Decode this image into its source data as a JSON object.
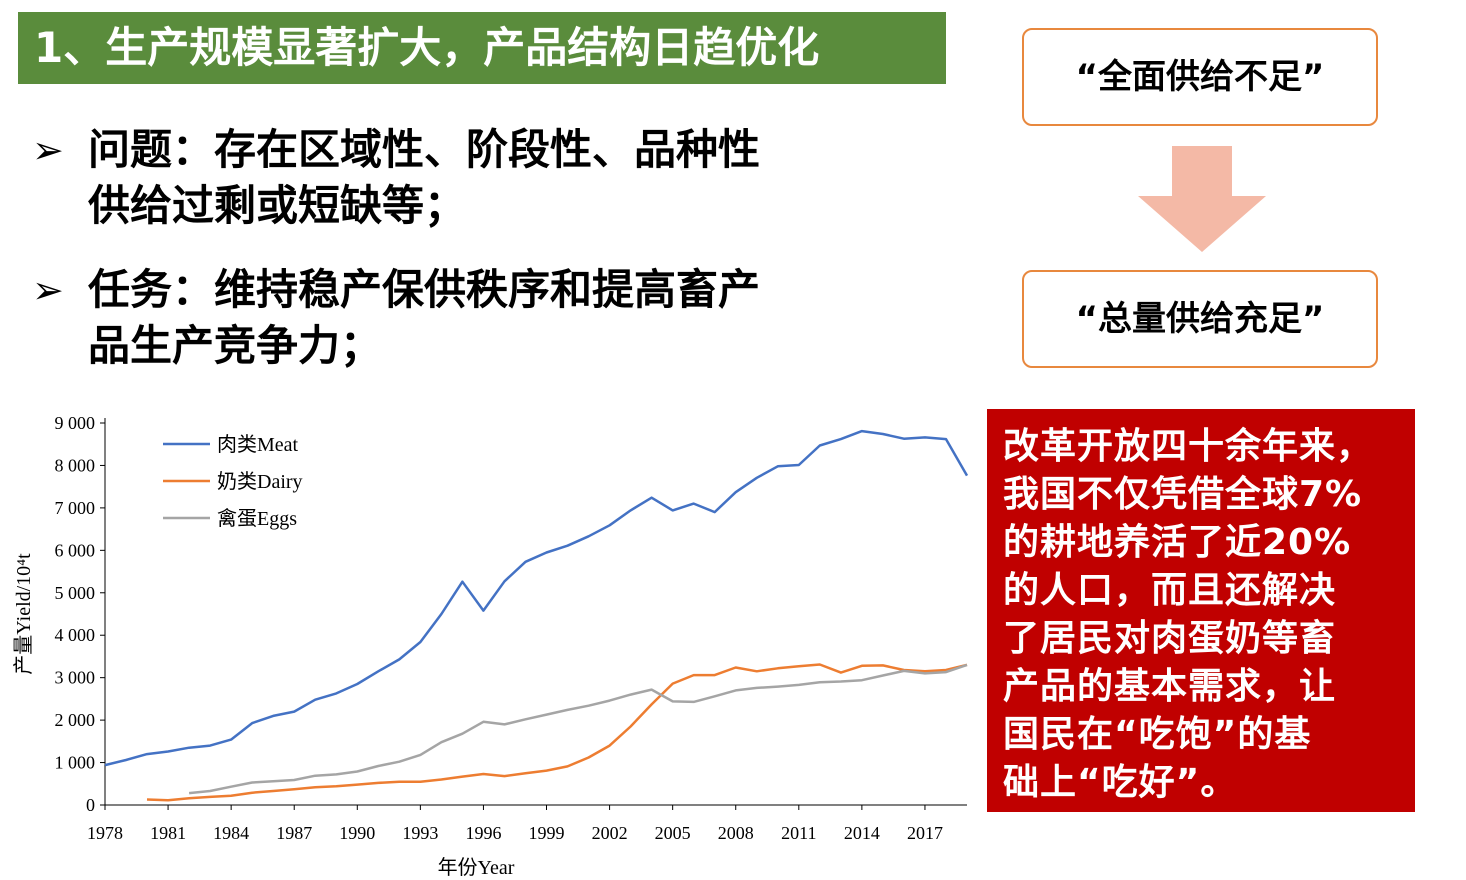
{
  "title": "1、生产规模显著扩大，产品结构日趋优化",
  "bullets": [
    {
      "marker": "➢",
      "lines": [
        "问题：存在区域性、阶段性、品种性",
        "供给过剩或短缺等；"
      ]
    },
    {
      "marker": "➢",
      "lines": [
        "任务：维持稳产保供秩序和提高畜产",
        "品生产竞争力；"
      ]
    }
  ],
  "flow": {
    "from": "“全面供给不足”",
    "to": "“总量供给充足”",
    "arrow_color": "#f4b9a6",
    "box_border_color": "#e8883e"
  },
  "callout": {
    "lines": [
      "改革开放四十余年来，",
      "我国不仅凭借全球7%",
      "的耕地养活了近20%",
      "的人口，而且还解决",
      "了居民对肉蛋奶等畜",
      "产品的基本需求，让",
      "国民在“吃饱”的基",
      "础上“吃好”。"
    ],
    "background": "#c00000"
  },
  "chart_data": {
    "type": "line",
    "xlabel": "年份Year",
    "ylabel": "产量Yield/10⁴t",
    "ylim": [
      0,
      9000
    ],
    "xlim": [
      1978,
      2019
    ],
    "yticks": [
      "0",
      "1 000",
      "2 000",
      "3 000",
      "4 000",
      "5 000",
      "6 000",
      "7 000",
      "8 000",
      "9 000"
    ],
    "xticks": [
      "1978",
      "1981",
      "1984",
      "1987",
      "1990",
      "1993",
      "1996",
      "1999",
      "2002",
      "2005",
      "2008",
      "2011",
      "2014",
      "2017"
    ],
    "legend_position": "top-left",
    "series": [
      {
        "name": "肉类Meat",
        "color": "#4472c4",
        "x": [
          1978,
          1979,
          1980,
          1981,
          1982,
          1983,
          1984,
          1985,
          1986,
          1987,
          1988,
          1989,
          1990,
          1991,
          1992,
          1993,
          1994,
          1995,
          1996,
          1997,
          1998,
          1999,
          2000,
          2001,
          2002,
          2003,
          2004,
          2005,
          2006,
          2007,
          2008,
          2009,
          2010,
          2011,
          2012,
          2013,
          2014,
          2015,
          2016,
          2017,
          2018,
          2019
        ],
        "values": [
          940,
          1060,
          1200,
          1260,
          1350,
          1400,
          1540,
          1930,
          2100,
          2200,
          2480,
          2630,
          2850,
          3150,
          3430,
          3840,
          4500,
          5260,
          4580,
          5270,
          5730,
          5950,
          6110,
          6330,
          6590,
          6940,
          7240,
          6940,
          7100,
          6900,
          7370,
          7710,
          7980,
          8010,
          8470,
          8620,
          8810,
          8740,
          8630,
          8660,
          8620,
          7760
        ]
      },
      {
        "name": "奶类Dairy",
        "color": "#ed7d31",
        "x": [
          1980,
          1981,
          1982,
          1983,
          1984,
          1985,
          1986,
          1987,
          1988,
          1989,
          1990,
          1991,
          1992,
          1993,
          1994,
          1995,
          1996,
          1997,
          1998,
          1999,
          2000,
          2001,
          2002,
          2003,
          2004,
          2005,
          2006,
          2007,
          2008,
          2009,
          2010,
          2011,
          2012,
          2013,
          2014,
          2015,
          2016,
          2017,
          2018,
          2019
        ],
        "values": [
          130,
          110,
          160,
          190,
          220,
          290,
          330,
          370,
          420,
          440,
          480,
          520,
          550,
          550,
          600,
          670,
          730,
          680,
          750,
          810,
          910,
          1120,
          1400,
          1850,
          2370,
          2860,
          3060,
          3060,
          3240,
          3150,
          3220,
          3270,
          3310,
          3120,
          3280,
          3290,
          3180,
          3150,
          3180,
          3300
        ]
      },
      {
        "name": "禽蛋Eggs",
        "color": "#a5a5a5",
        "x": [
          1982,
          1983,
          1984,
          1985,
          1986,
          1987,
          1988,
          1989,
          1990,
          1991,
          1992,
          1993,
          1994,
          1995,
          1996,
          1997,
          1998,
          1999,
          2000,
          2001,
          2002,
          2003,
          2004,
          2005,
          2006,
          2007,
          2008,
          2009,
          2010,
          2011,
          2012,
          2013,
          2014,
          2015,
          2016,
          2017,
          2018,
          2019
        ],
        "values": [
          280,
          330,
          430,
          530,
          560,
          590,
          690,
          720,
          790,
          920,
          1020,
          1180,
          1480,
          1680,
          1960,
          1900,
          2020,
          2130,
          2240,
          2340,
          2460,
          2600,
          2720,
          2440,
          2430,
          2560,
          2700,
          2760,
          2790,
          2830,
          2890,
          2910,
          2940,
          3050,
          3160,
          3100,
          3130,
          3300
        ]
      }
    ]
  }
}
